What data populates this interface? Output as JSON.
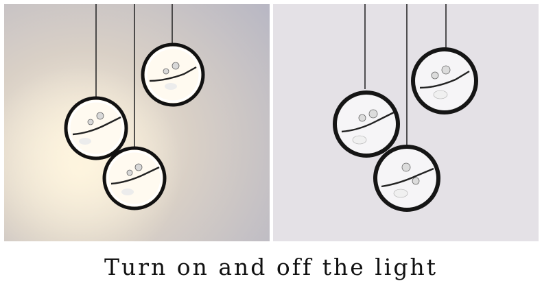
{
  "caption": "Turn on and off the light",
  "panels": [
    {
      "state": "on",
      "background": "#e9e4dc",
      "ring_color": "#1a1a1a",
      "glow_color": "#fff8e8"
    },
    {
      "state": "off",
      "background": "#e5e2e6",
      "ring_color": "#1a1a1a",
      "inner_color": "#f4f3f5"
    }
  ],
  "colors": {
    "branch": "#222222",
    "blossom": "#d8d8d8",
    "bird": "#eeeeee",
    "cord": "#2a2a2a"
  }
}
